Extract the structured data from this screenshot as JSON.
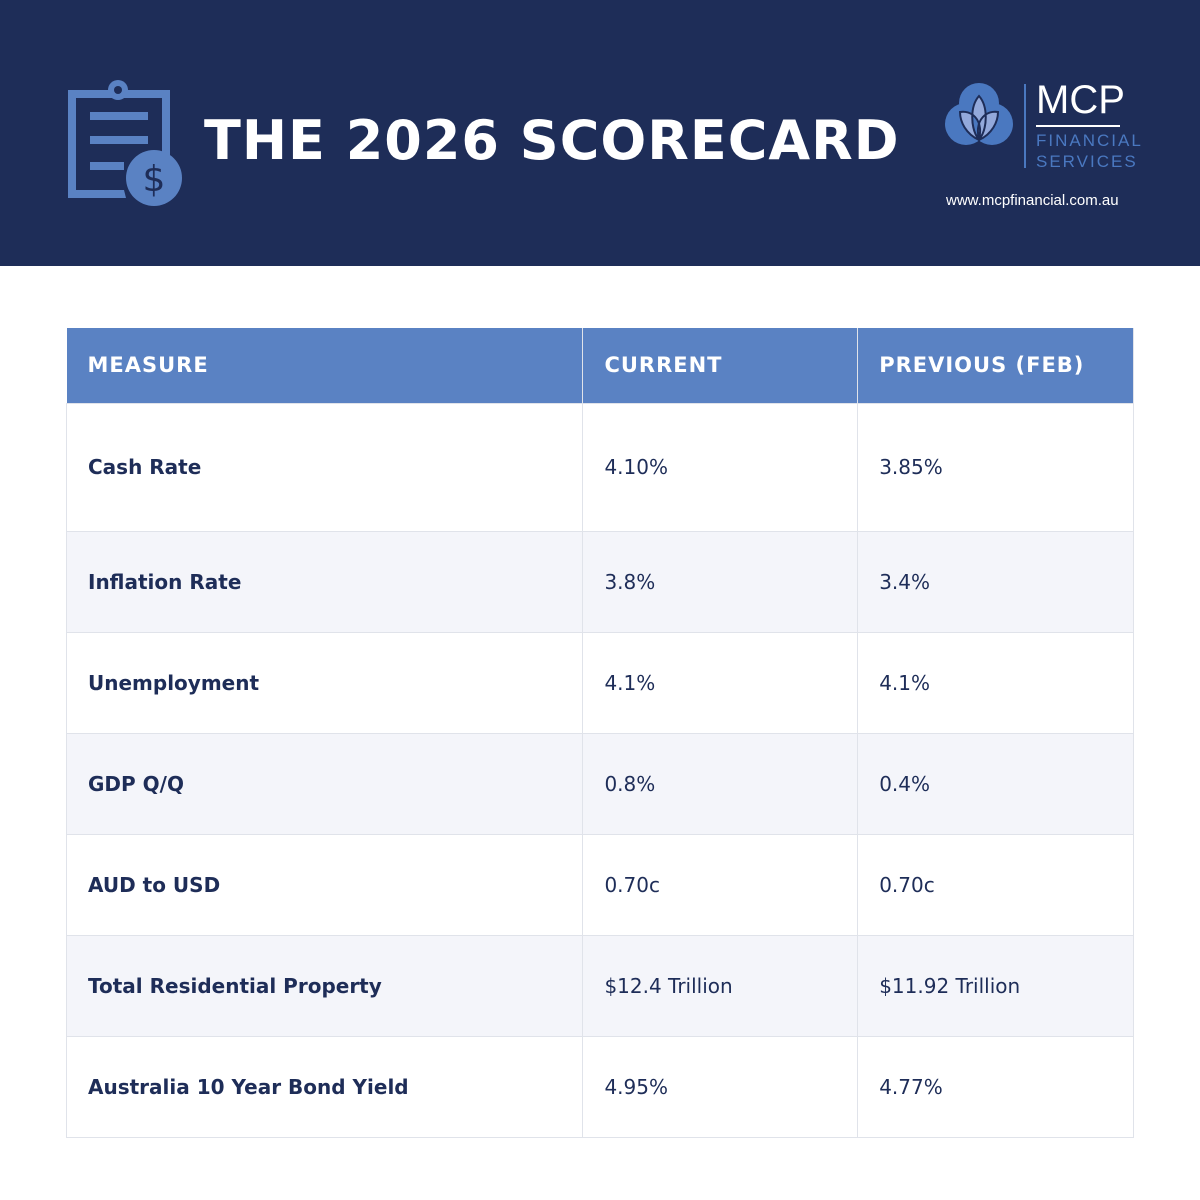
{
  "header": {
    "title": "THE 2026 SCORECARD",
    "logo": {
      "name": "MCP",
      "subtitle_1": "FINANCIAL",
      "subtitle_2": "SERVICES"
    },
    "url": "www.mcpfinancial.com.au",
    "colors": {
      "background": "#1e2d58",
      "accent": "#5a82c3"
    }
  },
  "table": {
    "headers": [
      "MEASURE",
      "CURRENT",
      "PREVIOUS (FEB)"
    ],
    "rows": [
      {
        "measure": "Cash Rate",
        "current": "4.10%",
        "previous": "3.85%"
      },
      {
        "measure": "Inflation Rate",
        "current": "3.8%",
        "previous": "3.4%"
      },
      {
        "measure": "Unemployment",
        "current": "4.1%",
        "previous": "4.1%"
      },
      {
        "measure": "GDP Q/Q",
        "current": "0.8%",
        "previous": "0.4%"
      },
      {
        "measure": "AUD to USD",
        "current": "0.70c",
        "previous": "0.70c"
      },
      {
        "measure": "Total Residential Property",
        "current": "$12.4 Trillion",
        "previous": "$11.92 Trillion"
      },
      {
        "measure": "Australia 10 Year Bond Yield",
        "current": "4.95%",
        "previous": "4.77%"
      }
    ]
  }
}
